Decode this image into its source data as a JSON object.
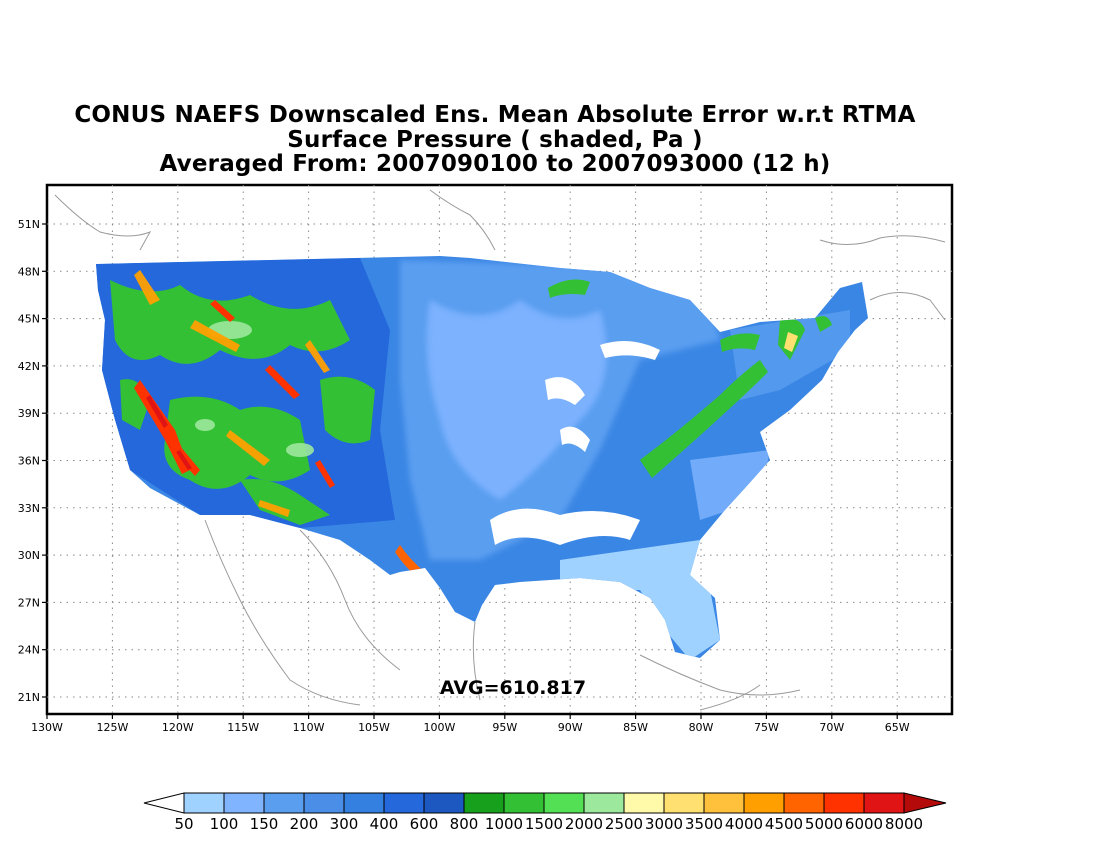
{
  "title": {
    "line1": "CONUS NAEFS Downscaled Ens. Mean Absolute Error w.r.t RTMA",
    "line2": "Surface Pressure ( shaded, Pa )",
    "line3": "Averaged From: 2007090100 to 2007093000 (12 h)"
  },
  "map": {
    "lon_labels": [
      "130W",
      "125W",
      "120W",
      "115W",
      "110W",
      "105W",
      "100W",
      "95W",
      "90W",
      "85W",
      "80W",
      "75W",
      "70W",
      "65W"
    ],
    "lat_labels": [
      "51N",
      "48N",
      "45N",
      "42N",
      "39N",
      "36N",
      "33N",
      "30N",
      "27N",
      "24N",
      "21N"
    ],
    "avg_label": "AVG=610.817",
    "grid": "dotted"
  },
  "colorbar": {
    "labels": [
      "50",
      "100",
      "150",
      "200",
      "300",
      "400",
      "600",
      "800",
      "1000",
      "1500",
      "2000",
      "2500",
      "3000",
      "3500",
      "4000",
      "4500",
      "5000",
      "6000",
      "8000"
    ],
    "colors": [
      "#a0d2ff",
      "#80b4ff",
      "#5a9ef0",
      "#4a8ee8",
      "#3480e0",
      "#2468dc",
      "#1c58c0",
      "#16a01c",
      "#34c034",
      "#54e054",
      "#9ce89c",
      "#fffaaa",
      "#ffe070",
      "#ffc03c",
      "#ffa000",
      "#ff6400",
      "#ff3200",
      "#e01414",
      "#b40a0a"
    ]
  }
}
